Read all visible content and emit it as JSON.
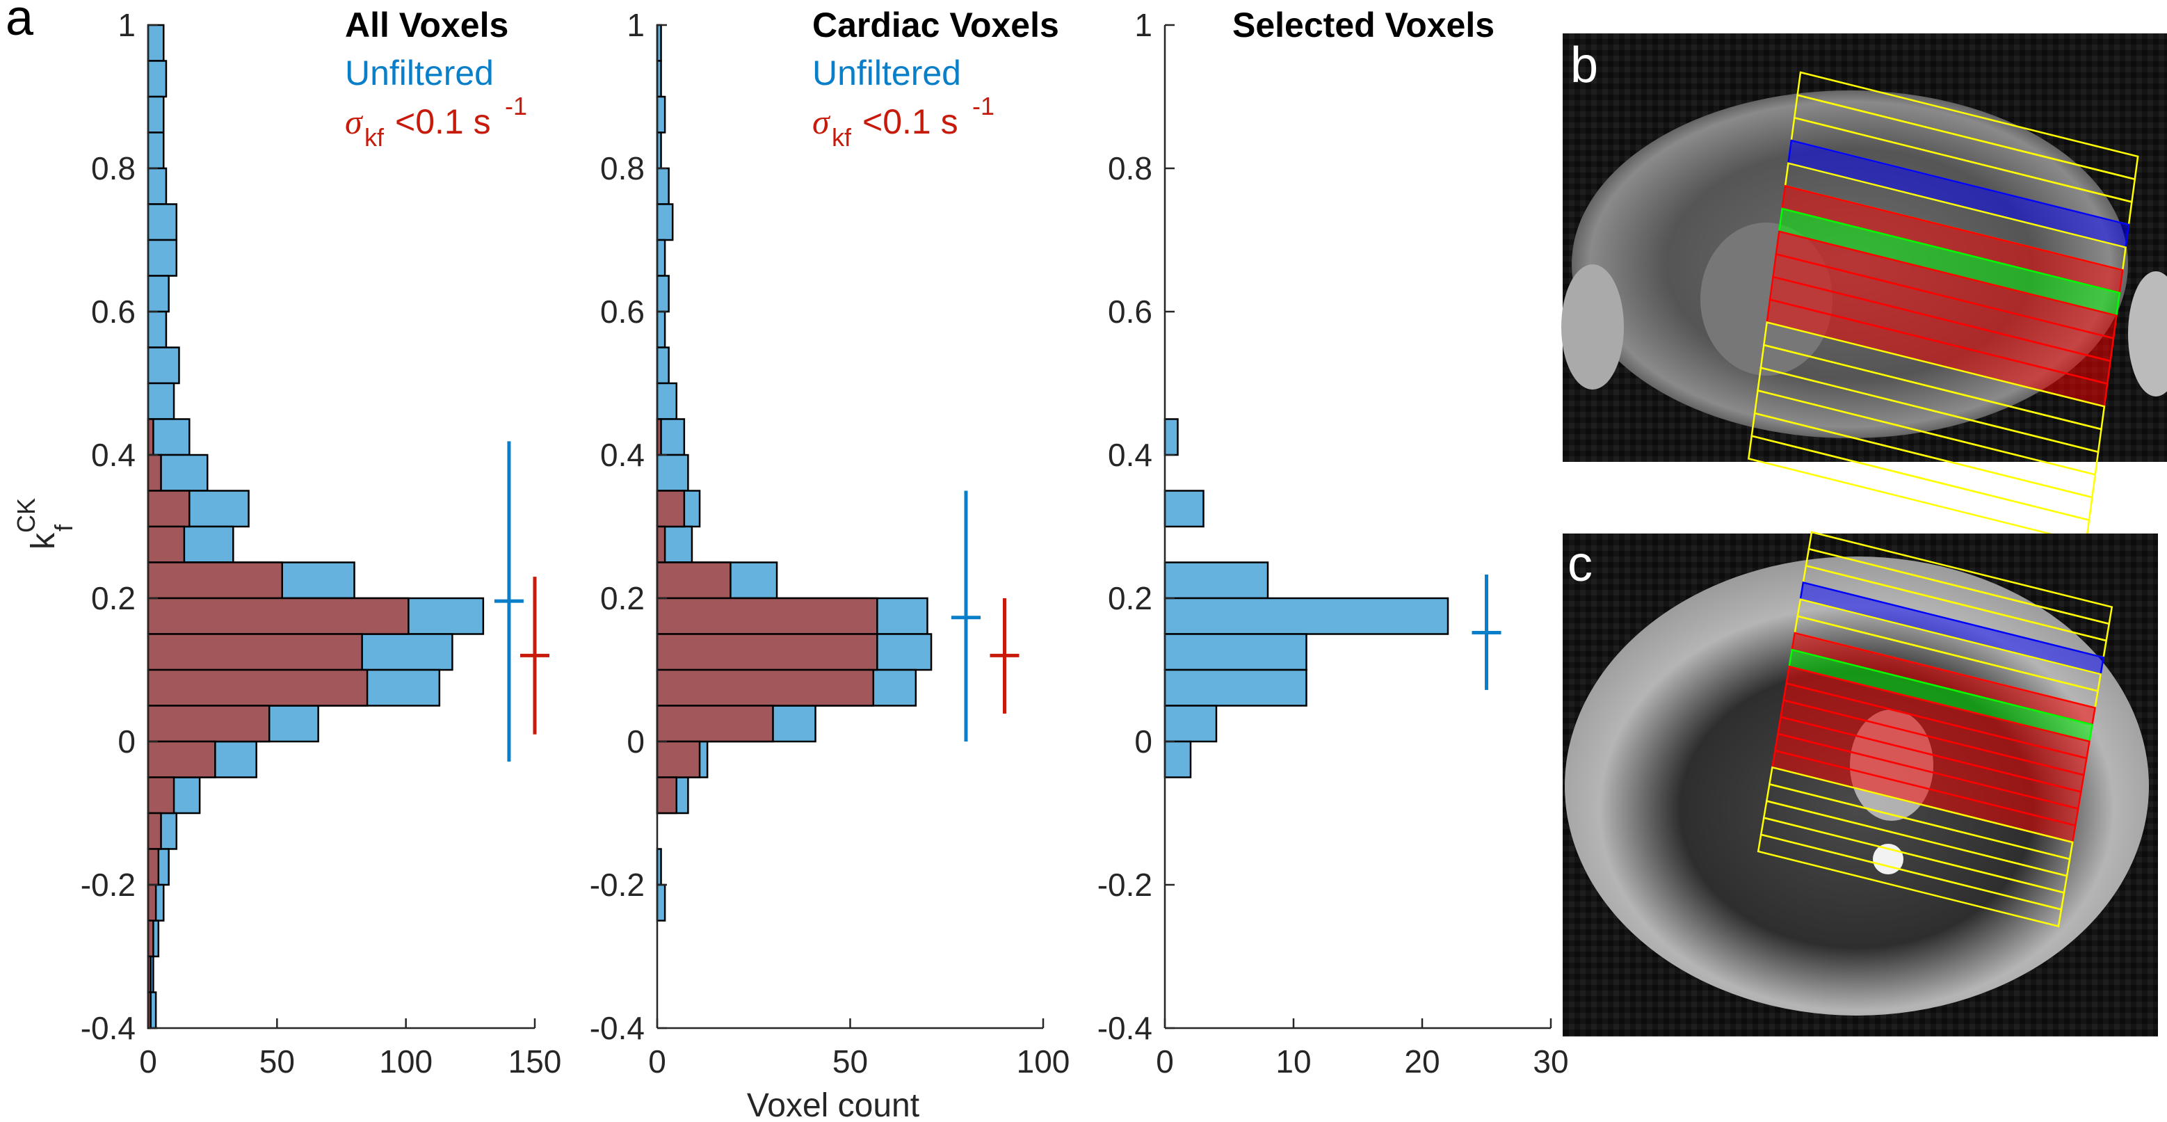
{
  "figure": {
    "panel_labels": {
      "a": "a",
      "b": "b",
      "c": "c"
    },
    "x_axis_title": "Voxel count",
    "y_axis_title": {
      "main": "k",
      "sub": "f",
      "sup": "CK"
    },
    "legend": {
      "unfiltered": "Unfiltered",
      "filtered_sigma": "σ",
      "filtered_sub": "kf",
      "filtered_text": "<0.1 s",
      "filtered_sup": "-1"
    },
    "colors": {
      "unfiltered_bar": "#65b2df",
      "filtered_bar": "#a2575b",
      "unfiltered_errorbar": "#0a7fc9",
      "filtered_errorbar": "#c81a0a",
      "roi_yellow": "#ffff00",
      "roi_red": "#ff0000",
      "roi_green": "#00ff00",
      "roi_blue": "#0000ff"
    },
    "images": [
      {
        "label": "b",
        "description": "Axial cardiac MRI slice with overlaid slab grid (yellow outlines), cardiac slabs (red), selected slab (green), reference slab (blue)"
      },
      {
        "label": "c",
        "description": "Axial cardiac MRI slice with overlaid slab grid (yellow outlines), cardiac slabs (red), selected slab (green), reference slab (blue)"
      }
    ]
  },
  "chart_data": [
    {
      "type": "bar",
      "orientation": "horizontal-histogram",
      "title": "All Voxels",
      "xlabel": "",
      "ylabel": "k_f^CK",
      "xlim": [
        0,
        150
      ],
      "ylim": [
        -0.4,
        1
      ],
      "xticks": [
        0,
        50,
        100,
        150
      ],
      "yticks": [
        -0.4,
        -0.2,
        0,
        0.2,
        0.4,
        0.6,
        0.8,
        1
      ],
      "ytick_labels": [
        "-0.4",
        "-0.2",
        "0",
        "0.2",
        "0.4",
        "0.6",
        "0.8",
        "1"
      ],
      "xtick_labels": [
        "0",
        "50",
        "100",
        "150"
      ],
      "bin_edges_low": [
        0.95,
        0.9,
        0.85,
        0.8,
        0.75,
        0.7,
        0.65,
        0.6,
        0.55,
        0.5,
        0.45,
        0.4,
        0.35,
        0.3,
        0.25,
        0.2,
        0.15,
        0.1,
        0.05,
        0,
        -0.05,
        -0.1,
        -0.15,
        -0.2,
        -0.25,
        -0.3,
        -0.35,
        -0.4
      ],
      "bin_width": 0.05,
      "series": [
        {
          "name": "Unfiltered",
          "values": [
            6,
            7,
            6,
            6,
            7,
            11,
            11,
            8,
            7,
            12,
            10,
            16,
            23,
            39,
            33,
            80,
            130,
            118,
            113,
            66,
            42,
            20,
            11,
            8,
            6,
            4,
            2,
            3
          ]
        },
        {
          "name": "σkf<0.1 s-1",
          "values": [
            0,
            0,
            0,
            0,
            0,
            0,
            0,
            0,
            0,
            0,
            0,
            2,
            5,
            16,
            14,
            52,
            101,
            83,
            85,
            47,
            26,
            10,
            5,
            4,
            3,
            2,
            1,
            1
          ]
        }
      ],
      "errorbars": [
        {
          "name": "Unfiltered",
          "x": 140,
          "mean": 0.196,
          "low": -0.028,
          "high": 0.419
        },
        {
          "name": "σkf<0.1 s-1",
          "x": 150,
          "mean": 0.12,
          "low": 0.01,
          "high": 0.23
        }
      ]
    },
    {
      "type": "bar",
      "orientation": "horizontal-histogram",
      "title": "Cardiac Voxels",
      "xlabel": "Voxel count",
      "ylabel": "",
      "xlim": [
        0,
        100
      ],
      "ylim": [
        -0.4,
        1
      ],
      "xticks": [
        0,
        50,
        100
      ],
      "xtick_labels": [
        "0",
        "50",
        "100"
      ],
      "yticks": [
        -0.4,
        -0.2,
        0,
        0.2,
        0.4,
        0.6,
        0.8,
        1
      ],
      "ytick_labels": [
        "-0.4",
        "-0.2",
        "0",
        "0.2",
        "0.4",
        "0.6",
        "0.8",
        "1"
      ],
      "bin_edges_low": [
        0.95,
        0.9,
        0.85,
        0.8,
        0.75,
        0.7,
        0.65,
        0.6,
        0.55,
        0.5,
        0.45,
        0.4,
        0.35,
        0.3,
        0.25,
        0.2,
        0.15,
        0.1,
        0.05,
        0,
        -0.05,
        -0.1,
        -0.15,
        -0.2,
        -0.25,
        -0.3,
        -0.35,
        -0.4
      ],
      "bin_width": 0.05,
      "series": [
        {
          "name": "Unfiltered",
          "values": [
            1,
            1,
            2,
            1,
            3,
            4,
            2,
            3,
            2,
            3,
            5,
            7,
            8,
            11,
            9,
            31,
            70,
            71,
            67,
            41,
            13,
            8,
            0,
            1,
            2,
            0,
            0,
            0
          ]
        },
        {
          "name": "σkf<0.1 s-1",
          "values": [
            0,
            0,
            0,
            0,
            0,
            0,
            0,
            0,
            0,
            0,
            0,
            1,
            0,
            7,
            2,
            19,
            57,
            57,
            56,
            30,
            11,
            5,
            0,
            0,
            0,
            0,
            0,
            0
          ]
        }
      ],
      "errorbars": [
        {
          "name": "Unfiltered",
          "x": 80,
          "mean": 0.173,
          "low": 0.0,
          "high": 0.35
        },
        {
          "name": "σkf<0.1 s-1",
          "x": 90,
          "mean": 0.12,
          "low": 0.039,
          "high": 0.2
        }
      ]
    },
    {
      "type": "bar",
      "orientation": "horizontal-histogram",
      "title": "Selected Voxels",
      "xlabel": "",
      "ylabel": "",
      "xlim": [
        0,
        30
      ],
      "ylim": [
        -0.4,
        1
      ],
      "xticks": [
        0,
        10,
        20,
        30
      ],
      "xtick_labels": [
        "0",
        "10",
        "20",
        "30"
      ],
      "yticks": [
        -0.4,
        -0.2,
        0,
        0.2,
        0.4,
        0.6,
        0.8,
        1
      ],
      "ytick_labels": [
        "-0.4",
        "-0.2",
        "0",
        "0.2",
        "0.4",
        "0.6",
        "0.8",
        "1"
      ],
      "bin_edges_low": [
        0.95,
        0.9,
        0.85,
        0.8,
        0.75,
        0.7,
        0.65,
        0.6,
        0.55,
        0.5,
        0.45,
        0.4,
        0.35,
        0.3,
        0.25,
        0.2,
        0.15,
        0.1,
        0.05,
        0,
        -0.05,
        -0.1,
        -0.15,
        -0.2,
        -0.25,
        -0.3,
        -0.35,
        -0.4
      ],
      "bin_width": 0.05,
      "series": [
        {
          "name": "Unfiltered",
          "values": [
            0,
            0,
            0,
            0,
            0,
            0,
            0,
            0,
            0,
            0,
            0,
            1,
            0,
            3,
            0,
            8,
            22,
            11,
            11,
            4,
            2,
            0,
            0,
            0,
            0,
            0,
            0,
            0
          ]
        }
      ],
      "errorbars": [
        {
          "name": "Unfiltered",
          "x": 25,
          "mean": 0.152,
          "low": 0.072,
          "high": 0.233
        }
      ]
    }
  ]
}
